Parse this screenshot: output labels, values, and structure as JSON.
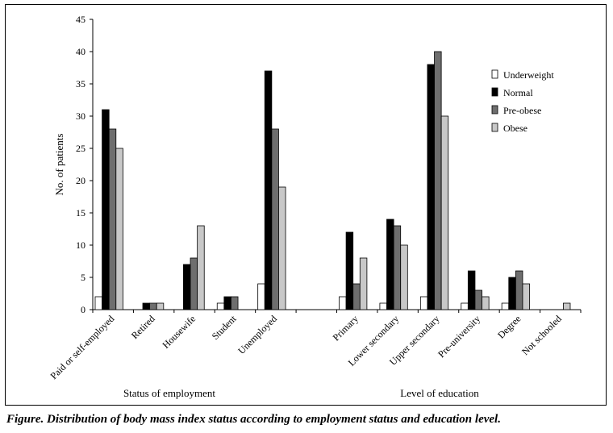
{
  "chart_data": {
    "type": "bar",
    "categories": [
      "Paid or self-employed",
      "Retired",
      "Housewife",
      "Student",
      "Unemployed",
      "",
      "Primary",
      "Lower secondary",
      "Upper secondary",
      "Pre-university",
      "Degree",
      "Not schooled"
    ],
    "series": [
      {
        "name": "Underweight",
        "values": [
          2,
          0,
          0,
          1,
          4,
          null,
          2,
          1,
          2,
          1,
          1,
          0
        ],
        "color": "#ffffff"
      },
      {
        "name": "Normal",
        "values": [
          31,
          1,
          7,
          2,
          37,
          null,
          12,
          14,
          38,
          6,
          5,
          0
        ],
        "color": "#000000"
      },
      {
        "name": "Pre-obese",
        "values": [
          28,
          1,
          8,
          2,
          28,
          null,
          4,
          13,
          40,
          3,
          6,
          0
        ],
        "color": "#6e6e6e"
      },
      {
        "name": "Obese",
        "values": [
          25,
          1,
          13,
          0,
          19,
          null,
          8,
          10,
          30,
          2,
          4,
          1
        ],
        "color": "#c8c8c8"
      }
    ],
    "ylabel": "No. of patients",
    "ylim": [
      0,
      45
    ],
    "yticks": [
      0,
      5,
      10,
      15,
      20,
      25,
      30,
      35,
      40,
      45
    ],
    "groups": [
      {
        "label": "Status of employment"
      },
      {
        "label": "Level of education"
      }
    ],
    "legend_position": "top-right",
    "grid": false
  },
  "caption": {
    "lead": "Figure.",
    "text": "Distribution of body mass index status according to employment status and education level."
  }
}
